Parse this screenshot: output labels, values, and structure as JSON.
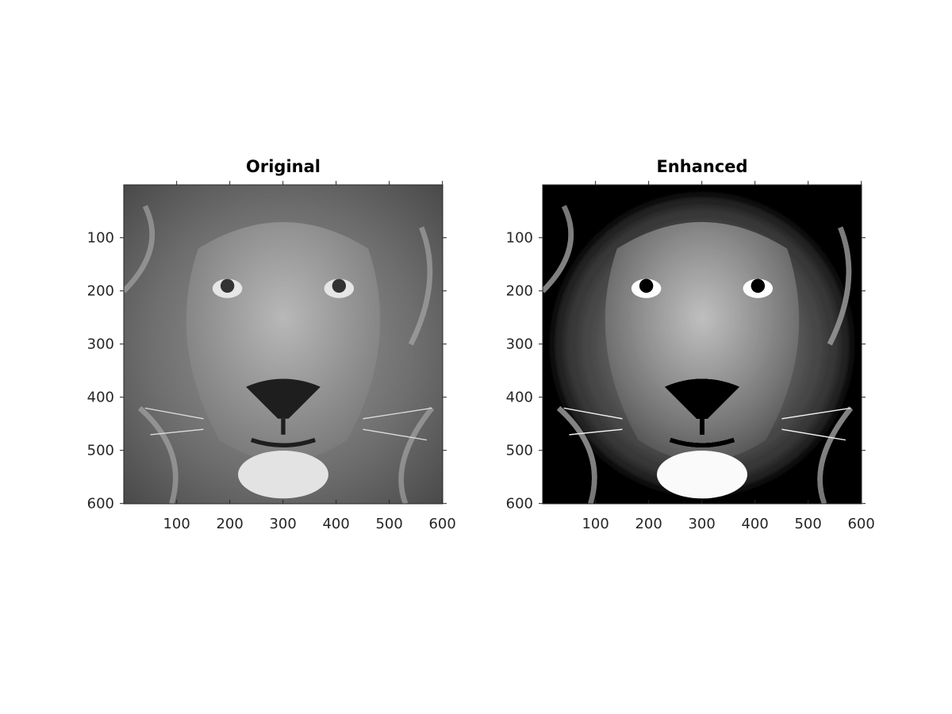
{
  "chart_data": [
    {
      "type": "image",
      "title": "Original",
      "xlim": [
        0.5,
        600.5
      ],
      "ylim": [
        0.5,
        600.5
      ],
      "y_reversed": true,
      "xticks": [
        100,
        200,
        300,
        400,
        500,
        600
      ],
      "yticks": [
        100,
        200,
        300,
        400,
        500,
        600
      ],
      "box": true
    },
    {
      "type": "image",
      "title": "Enhanced",
      "xlim": [
        0.5,
        600.5
      ],
      "ylim": [
        0.5,
        600.5
      ],
      "y_reversed": true,
      "xticks": [
        100,
        200,
        300,
        400,
        500,
        600
      ],
      "yticks": [
        100,
        200,
        300,
        400,
        500,
        600
      ],
      "box": true
    }
  ]
}
